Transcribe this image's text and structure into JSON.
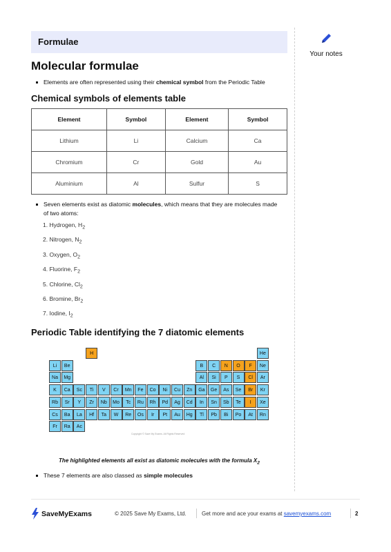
{
  "section_title": "Formulae",
  "notes": {
    "label": "Your notes",
    "icon": "pencil-icon",
    "icon_color": "#2b4fd6"
  },
  "heading": "Molecular formulae",
  "bullet1": {
    "pre": "Elements are often represented using their ",
    "bold": "chemical symbol",
    "post": " from the Periodic Table"
  },
  "table_heading": "Chemical symbols of elements table",
  "table": {
    "headers": [
      "Element",
      "Symbol",
      "Element",
      "Symbol"
    ],
    "rows": [
      [
        "Lithium",
        "Li",
        "Calcium",
        "Ca"
      ],
      [
        "Chromium",
        "Cr",
        "Gold",
        "Au"
      ],
      [
        "Aluminium",
        "Al",
        "Sulfur",
        "S"
      ]
    ]
  },
  "bullet2": {
    "pre": "Seven elements exist as diatomic ",
    "bold": "molecules",
    "post": ", which means that they are molecules made of two atoms:"
  },
  "diatomic": [
    {
      "n": "1.",
      "name": "Hydrogen, H",
      "sub": "2"
    },
    {
      "n": "2.",
      "name": "Nitrogen, N",
      "sub": "2"
    },
    {
      "n": "3.",
      "name": "Oxygen, O",
      "sub": "2"
    },
    {
      "n": "4.",
      "name": "Fluorine, F",
      "sub": "2"
    },
    {
      "n": "5.",
      "name": "Chlorine, Cl",
      "sub": "2"
    },
    {
      "n": "6.",
      "name": "Bromine, Br",
      "sub": "2"
    },
    {
      "n": "7.",
      "name": "Iodine, I",
      "sub": "2"
    }
  ],
  "pt_heading": "Periodic Table identifying the 7 diatomic elements",
  "periodic_table": {
    "cell_color": "#7fd3f3",
    "highlight_color": "#f5a21d",
    "highlighted": [
      "H",
      "N",
      "O",
      "F",
      "Cl",
      "Br",
      "I"
    ],
    "rows": [
      [
        "H",
        "",
        "",
        "",
        "",
        "",
        "",
        "",
        "",
        "",
        "",
        "",
        "",
        "",
        "",
        "",
        "",
        "He"
      ],
      [
        "Li",
        "Be",
        "",
        "",
        "",
        "",
        "",
        "",
        "",
        "",
        "",
        "",
        "B",
        "C",
        "N",
        "O",
        "F",
        "Ne"
      ],
      [
        "Na",
        "Mg",
        "",
        "",
        "",
        "",
        "",
        "",
        "",
        "",
        "",
        "",
        "Al",
        "Si",
        "P",
        "S",
        "Cl",
        "Ar"
      ],
      [
        "K",
        "Ca",
        "Sc",
        "Ti",
        "V",
        "Cr",
        "Mn",
        "Fe",
        "Co",
        "Ni",
        "Cu",
        "Zn",
        "Ga",
        "Ge",
        "As",
        "Se",
        "Br",
        "Kr"
      ],
      [
        "Rb",
        "Sr",
        "Y",
        "Zr",
        "Nb",
        "Mo",
        "Tc",
        "Ru",
        "Rh",
        "Pd",
        "Ag",
        "Cd",
        "In",
        "Sn",
        "Sb",
        "Te",
        "I",
        "Xe"
      ],
      [
        "Cs",
        "Ba",
        "La",
        "Hf",
        "Ta",
        "W",
        "Re",
        "Os",
        "Ir",
        "Pt",
        "Au",
        "Hg",
        "Tl",
        "Pb",
        "Bi",
        "Po",
        "At",
        "Rn"
      ],
      [
        "Fr",
        "Ra",
        "Ac",
        "",
        "",
        "",
        "",
        "",
        "",
        "",
        "",
        "",
        "",
        "",
        "",
        "",
        "",
        ""
      ]
    ],
    "copyright": "Copyright © Save My Exams. All Rights Reserved"
  },
  "caption": {
    "text": "The highlighted elements all exist as diatomic molecules with the formula X",
    "sub": "2"
  },
  "bullet3": {
    "pre": "These 7 elements are also classed as ",
    "bold": "simple molecules",
    "post": ""
  },
  "footer": {
    "brand": "SaveMyExams",
    "copyright": "© 2025 Save My Exams, Ltd.",
    "cta": "Get more and ace your exams at ",
    "link": "savemyexams.com",
    "page": "2"
  }
}
